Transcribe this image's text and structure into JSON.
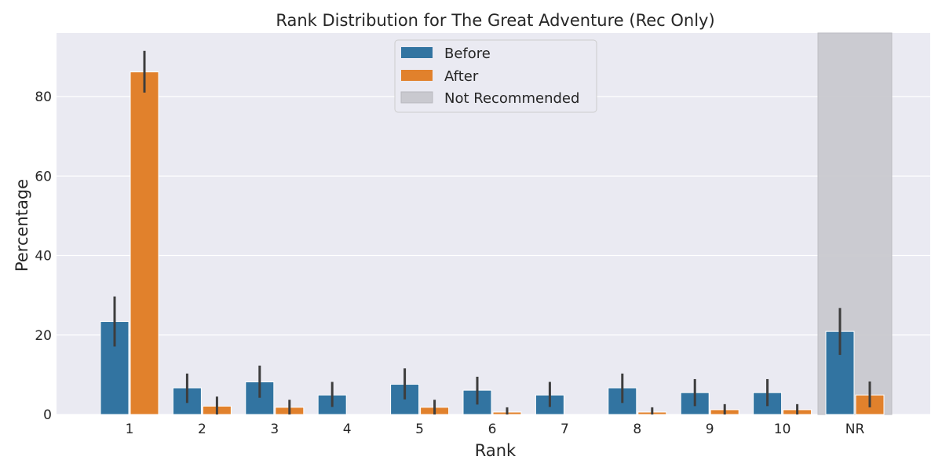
{
  "chart_data": {
    "type": "bar",
    "title": "Rank Distribution for The Great Adventure (Rec Only)",
    "xlabel": "Rank",
    "ylabel": "Percentage",
    "categories": [
      "1",
      "2",
      "3",
      "4",
      "5",
      "6",
      "7",
      "8",
      "9",
      "10",
      "NR"
    ],
    "ylim": [
      0,
      96
    ],
    "yticks": [
      0,
      20,
      40,
      60,
      80
    ],
    "grid": true,
    "legend_position": "top-center",
    "shaded_category": "NR",
    "series": [
      {
        "name": "Before",
        "color": "#3274a1",
        "values": [
          23.4,
          6.7,
          8.2,
          4.9,
          7.6,
          6.1,
          4.9,
          6.7,
          5.5,
          5.5,
          20.9
        ],
        "error_low": [
          17.1,
          2.9,
          4.2,
          1.9,
          3.8,
          2.5,
          1.9,
          2.9,
          2.1,
          2.1,
          15.0
        ],
        "error_high": [
          29.7,
          10.3,
          12.3,
          8.2,
          11.6,
          9.5,
          8.2,
          10.3,
          8.9,
          8.9,
          26.8
        ]
      },
      {
        "name": "After",
        "color": "#e1812c",
        "values": [
          86.2,
          2.1,
          1.8,
          0,
          1.8,
          0.6,
          0,
          0.6,
          1.2,
          1.2,
          4.9
        ],
        "error_low": [
          81.0,
          0,
          0,
          0,
          0,
          0,
          0,
          0,
          0,
          0,
          1.8
        ],
        "error_high": [
          91.5,
          4.5,
          3.7,
          0,
          3.7,
          1.8,
          0,
          1.8,
          2.6,
          2.6,
          8.3
        ]
      }
    ],
    "legend_extra": {
      "name": "Not Recommended",
      "color": "#c9c9cf"
    }
  }
}
